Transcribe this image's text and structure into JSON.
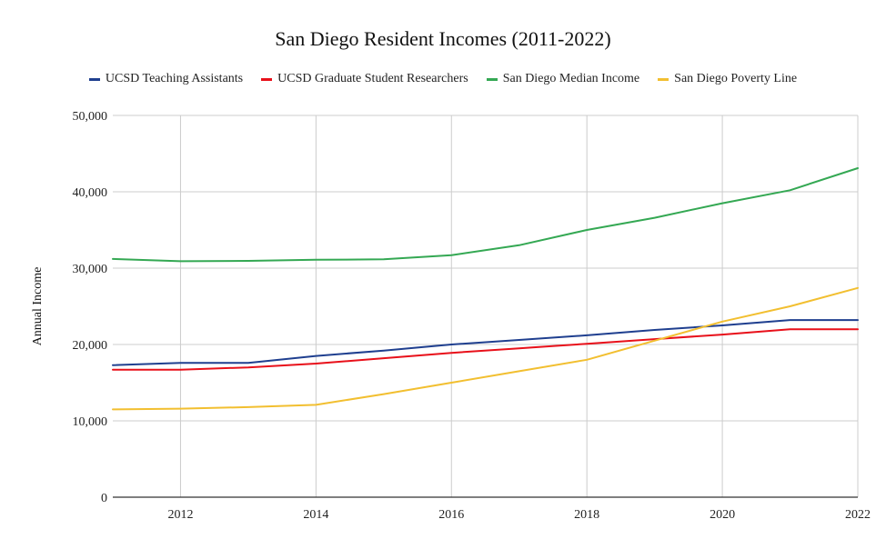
{
  "chart_data": {
    "type": "line",
    "title": "San Diego Resident Incomes (2011-2022)",
    "xlabel": "",
    "ylabel": "Annual Income",
    "x": [
      2011,
      2012,
      2013,
      2014,
      2015,
      2016,
      2017,
      2018,
      2019,
      2020,
      2021,
      2022
    ],
    "xlim": [
      2011,
      2022
    ],
    "ylim": [
      0,
      50000
    ],
    "x_ticks": [
      "2012",
      "2014",
      "2016",
      "2018",
      "2020",
      "2022"
    ],
    "y_ticks": [
      "0",
      "10,000",
      "20,000",
      "30,000",
      "40,000",
      "50,000"
    ],
    "grid": true,
    "legend_position": "top",
    "series": [
      {
        "name": "UCSD Teaching Assistants",
        "color": "#1f3f8f",
        "values": [
          17300,
          17600,
          17600,
          18500,
          19200,
          20000,
          20600,
          21200,
          21900,
          22500,
          23200,
          23200
        ]
      },
      {
        "name": "UCSD Graduate Student Researchers",
        "color": "#e8101a",
        "values": [
          16700,
          16700,
          17000,
          17500,
          18200,
          18900,
          19500,
          20100,
          20700,
          21300,
          22000,
          22000
        ]
      },
      {
        "name": "San Diego Median Income",
        "color": "#34a853",
        "values": [
          31200,
          30900,
          30950,
          31100,
          31150,
          31700,
          33000,
          35000,
          36600,
          38500,
          40200,
          43100
        ]
      },
      {
        "name": "San Diego Poverty Line",
        "color": "#f2bf30",
        "values": [
          11500,
          11600,
          11800,
          12100,
          13500,
          15000,
          16500,
          18000,
          20500,
          23000,
          25000,
          27400
        ]
      }
    ]
  }
}
